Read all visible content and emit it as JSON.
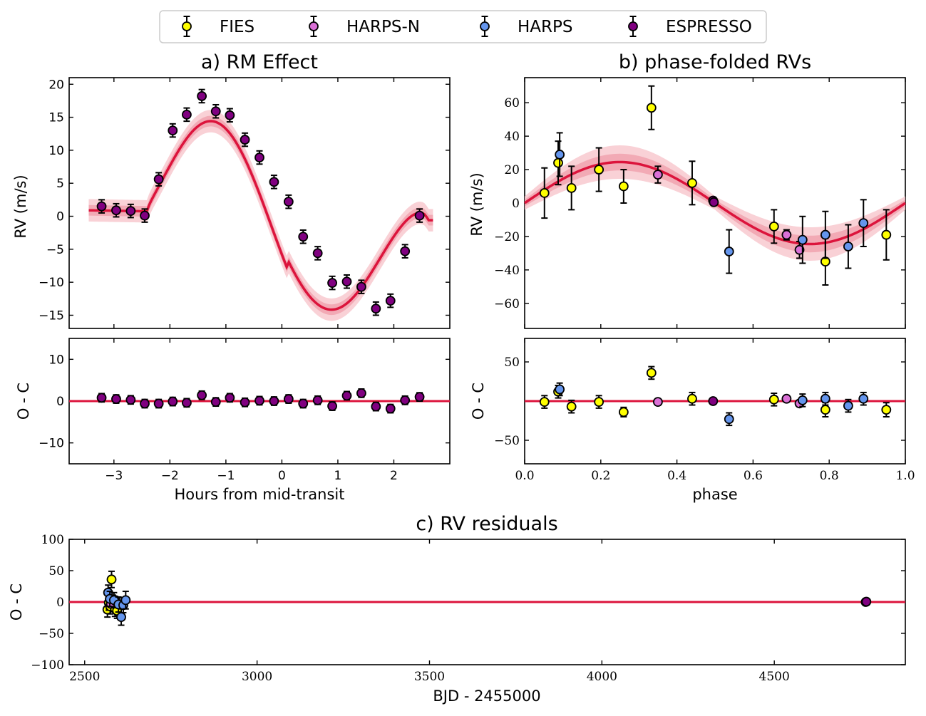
{
  "colors": {
    "model": "#dc143c",
    "band_outer": "#f7c6cc",
    "band_inner": "#f09aa6",
    "FIES": "#ffff00",
    "HARPS-N": "#da70d6",
    "HARPS": "#6495ed",
    "ESPRESSO": "#800080"
  },
  "legend": {
    "entries": [
      {
        "label": "FIES",
        "color": "#ffff00"
      },
      {
        "label": "HARPS-N",
        "color": "#da70d6"
      },
      {
        "label": "HARPS",
        "color": "#6495ed"
      },
      {
        "label": "ESPRESSO",
        "color": "#800080"
      }
    ]
  },
  "chart_data": [
    {
      "id": "rm",
      "type": "scatter",
      "title": "a) RM Effect",
      "xlabel": "Hours from mid-transit",
      "ylabel": "RV (m/s)",
      "xlim": [
        -3.8,
        3.0
      ],
      "ylim": [
        -17,
        21
      ],
      "xticks": [
        -3,
        -2,
        -1,
        0,
        1,
        2
      ],
      "xtick_labels": [
        "−3",
        "−2",
        "−1",
        "0",
        "1",
        "2"
      ],
      "yticks": [
        -15,
        -10,
        -5,
        0,
        5,
        10,
        15,
        20
      ],
      "ytick_labels": [
        "−15",
        "−10",
        "−5",
        "0",
        "5",
        "10",
        "15",
        "20"
      ],
      "series": [
        {
          "name": "ESPRESSO",
          "x": [
            -3.22,
            -2.96,
            -2.7,
            -2.45,
            -2.2,
            -1.95,
            -1.7,
            -1.43,
            -1.18,
            -0.93,
            -0.66,
            -0.4,
            -0.14,
            0.12,
            0.38,
            0.64,
            0.9,
            1.16,
            1.42,
            1.68,
            1.94,
            2.2,
            2.46
          ],
          "y": [
            1.5,
            0.9,
            0.8,
            0.1,
            5.6,
            13.0,
            15.4,
            18.2,
            15.9,
            15.3,
            11.6,
            8.9,
            5.2,
            2.2,
            -3.1,
            -5.6,
            -10.1,
            -9.9,
            -10.7,
            -14.0,
            -12.8,
            -5.3,
            0.1
          ],
          "err": [
            1.0,
            1.0,
            1.0,
            1.0,
            1.0,
            1.0,
            1.0,
            1.0,
            1.0,
            1.0,
            1.0,
            1.0,
            1.0,
            1.0,
            1.0,
            1.0,
            1.0,
            1.0,
            1.0,
            1.0,
            1.0,
            1.0,
            1.0
          ]
        }
      ]
    },
    {
      "id": "rm_res",
      "type": "scatter",
      "title": "",
      "xlabel": "",
      "ylabel": "O - C",
      "xlim": [
        -3.8,
        3.0
      ],
      "ylim": [
        -15,
        15
      ],
      "yticks": [
        -10,
        0,
        10
      ],
      "ytick_labels": [
        "−10",
        "0",
        "10"
      ],
      "series": [
        {
          "name": "ESPRESSO",
          "x": [
            -3.22,
            -2.96,
            -2.7,
            -2.45,
            -2.2,
            -1.95,
            -1.7,
            -1.43,
            -1.18,
            -0.93,
            -0.66,
            -0.4,
            -0.14,
            0.12,
            0.38,
            0.64,
            0.9,
            1.16,
            1.42,
            1.68,
            1.94,
            2.2,
            2.46
          ],
          "y": [
            0.8,
            0.5,
            0.3,
            -0.6,
            -0.6,
            -0.1,
            -0.4,
            1.4,
            -0.2,
            0.8,
            -0.3,
            0.1,
            0.0,
            0.5,
            -0.6,
            0.2,
            -1.2,
            1.3,
            1.9,
            -1.3,
            -1.8,
            0.2,
            1.0
          ],
          "err": [
            1.0,
            1.0,
            1.0,
            1.0,
            1.0,
            1.0,
            1.0,
            1.0,
            1.0,
            1.0,
            1.0,
            1.0,
            1.0,
            1.0,
            1.0,
            1.0,
            1.0,
            1.0,
            1.0,
            1.0,
            1.0,
            1.0,
            1.0
          ]
        }
      ]
    },
    {
      "id": "phase",
      "type": "scatter",
      "title": "b) phase-folded RVs",
      "xlabel": "",
      "ylabel": "RV (m/s)",
      "xlim": [
        0.0,
        1.0
      ],
      "ylim": [
        -75,
        75
      ],
      "yticks": [
        -60,
        -40,
        -20,
        0,
        20,
        40,
        60
      ],
      "ytick_labels": [
        "−60",
        "−40",
        "−20",
        "0",
        "20",
        "40",
        "60"
      ],
      "series": [
        {
          "name": "FIES",
          "x": [
            0.052,
            0.088,
            0.123,
            0.195,
            0.26,
            0.333,
            0.44,
            0.655,
            0.79,
            0.95
          ],
          "y": [
            6,
            24,
            9,
            20,
            10,
            57,
            12,
            -14,
            -35,
            -19
          ],
          "err": [
            15,
            13,
            13,
            13,
            10,
            13,
            13,
            10,
            14,
            15
          ]
        },
        {
          "name": "HARPS-N",
          "x": [
            0.35,
            0.688,
            0.722
          ],
          "y": [
            17,
            -19,
            -28
          ],
          "err": [
            5,
            3,
            5
          ]
        },
        {
          "name": "HARPS",
          "x": [
            0.092,
            0.537,
            0.73,
            0.79,
            0.85,
            0.89
          ],
          "y": [
            29,
            -29,
            -22,
            -19,
            -26,
            -12
          ],
          "err": [
            13,
            13,
            14,
            14,
            13,
            14
          ]
        },
        {
          "name": "ESPRESSO",
          "x": [
            0.495,
            0.497
          ],
          "y": [
            1.5,
            0.5
          ],
          "err": [
            1,
            1
          ]
        }
      ]
    },
    {
      "id": "phase_res",
      "type": "scatter",
      "title": "",
      "xlabel": "phase",
      "ylabel": "O - C",
      "xlim": [
        0.0,
        1.0
      ],
      "ylim": [
        -80,
        80
      ],
      "xticks": [
        0.0,
        0.2,
        0.4,
        0.6,
        0.8,
        1.0
      ],
      "xtick_labels": [
        "0.0",
        "0.2",
        "0.4",
        "0.6",
        "0.8",
        "1.0"
      ],
      "yticks": [
        -50,
        50
      ],
      "ytick_labels": [
        "−50",
        "50"
      ],
      "series": [
        {
          "name": "FIES",
          "x": [
            0.052,
            0.088,
            0.123,
            0.195,
            0.26,
            0.333,
            0.44,
            0.655,
            0.79,
            0.95
          ],
          "y": [
            -1,
            12,
            -7,
            -1,
            -14,
            36,
            3,
            2,
            -11,
            -11
          ],
          "err": [
            8,
            8,
            8,
            8,
            6,
            8,
            8,
            8,
            9,
            9
          ]
        },
        {
          "name": "HARPS-N",
          "x": [
            0.35,
            0.688,
            0.722
          ],
          "y": [
            -1,
            3,
            -3
          ],
          "err": [
            2,
            2,
            2
          ]
        },
        {
          "name": "HARPS",
          "x": [
            0.092,
            0.537,
            0.73,
            0.79,
            0.85,
            0.89
          ],
          "y": [
            15,
            -23,
            1,
            3,
            -6,
            3
          ],
          "err": [
            8,
            8,
            8,
            8,
            8,
            8
          ]
        },
        {
          "name": "ESPRESSO",
          "x": [
            0.495
          ],
          "y": [
            0
          ],
          "err": [
            1
          ]
        }
      ]
    },
    {
      "id": "time_res",
      "type": "scatter",
      "title": "c) RV residuals",
      "xlabel": "BJD - 2455000",
      "ylabel": "O - C",
      "xlim": [
        2455,
        4880
      ],
      "ylim": [
        -100,
        100
      ],
      "xticks": [
        2500,
        3000,
        3500,
        4000,
        4500
      ],
      "xtick_labels": [
        "2500",
        "3000",
        "3500",
        "4000",
        "4500"
      ],
      "yticks": [
        -100,
        -50,
        0,
        50,
        100
      ],
      "ytick_labels": [
        "−100",
        "−50",
        "0",
        "50",
        "100"
      ],
      "series": [
        {
          "name": "FIES",
          "x": [
            2566,
            2570,
            2574,
            2578,
            2582,
            2588,
            2594
          ],
          "y": [
            -12,
            -1,
            -7,
            36,
            -1,
            -11,
            -14
          ],
          "err": [
            12,
            12,
            12,
            13,
            12,
            12,
            12
          ]
        },
        {
          "name": "HARPS-N",
          "x": [
            2576,
            2590
          ],
          "y": [
            -3,
            3
          ],
          "err": [
            3,
            3
          ]
        },
        {
          "name": "HARPS",
          "x": [
            2568,
            2573,
            2585,
            2598,
            2606,
            2612,
            2619
          ],
          "y": [
            15,
            5,
            3,
            -4,
            -24,
            -5,
            3
          ],
          "err": [
            12,
            12,
            12,
            12,
            13,
            12,
            14
          ]
        },
        {
          "name": "ESPRESSO",
          "x": [
            4765,
            4767
          ],
          "y": [
            0,
            0.5
          ],
          "err": [
            1,
            1
          ]
        }
      ]
    }
  ]
}
